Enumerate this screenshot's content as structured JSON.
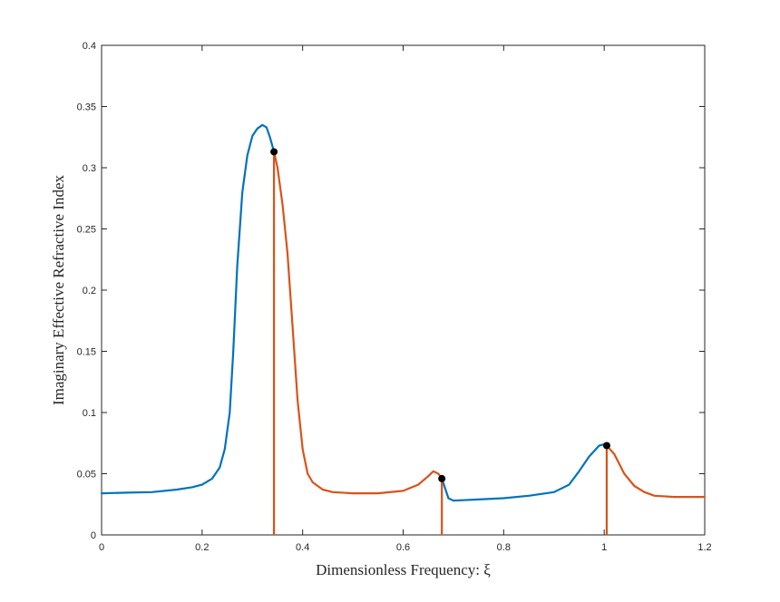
{
  "chart_data": {
    "type": "line",
    "xlabel": "Dimensionless Frequency: ξ",
    "ylabel": "Imaginary Effective Refractive Index",
    "xlim": [
      0,
      1.2
    ],
    "ylim": [
      0,
      0.4
    ],
    "x_ticks": [
      0,
      0.2,
      0.4,
      0.6,
      0.8,
      1,
      1.2
    ],
    "x_tick_labels": [
      "0",
      "0.2",
      "0.4",
      "0.6",
      "0.8",
      "1",
      "1.2"
    ],
    "y_ticks": [
      0,
      0.05,
      0.1,
      0.15,
      0.2,
      0.25,
      0.3,
      0.35,
      0.4
    ],
    "y_tick_labels": [
      "0",
      "0.05",
      "0.1",
      "0.15",
      "0.2",
      "0.25",
      "0.3",
      "0.35",
      "0.4"
    ],
    "grid": false,
    "colors": {
      "blue": "#0072BD",
      "orange": "#D95319",
      "marker": "#000000"
    },
    "series": [
      {
        "color": "blue",
        "segments": [
          {
            "x": [
              0,
              0.05,
              0.1,
              0.15,
              0.18,
              0.2,
              0.22,
              0.235,
              0.245,
              0.255,
              0.262,
              0.27,
              0.28,
              0.29,
              0.3,
              0.31,
              0.32,
              0.328,
              0.335,
              0.343
            ],
            "y": [
              0.034,
              0.0345,
              0.035,
              0.037,
              0.039,
              0.041,
              0.046,
              0.055,
              0.07,
              0.1,
              0.15,
              0.22,
              0.28,
              0.31,
              0.326,
              0.332,
              0.335,
              0.333,
              0.325,
              0.313
            ]
          },
          {
            "x": [
              0.677,
              0.69,
              0.7,
              0.75,
              0.8,
              0.85,
              0.9,
              0.93,
              0.95,
              0.97,
              0.99,
              1.0,
              1.005
            ],
            "y": [
              0.046,
              0.03,
              0.028,
              0.029,
              0.03,
              0.032,
              0.035,
              0.041,
              0.052,
              0.064,
              0.073,
              0.074,
              0.073
            ]
          }
        ]
      },
      {
        "color": "orange",
        "segments": [
          {
            "x": [
              0.343,
              0.35,
              0.36,
              0.37,
              0.38,
              0.39,
              0.4,
              0.41,
              0.42,
              0.44,
              0.46,
              0.5,
              0.55,
              0.6,
              0.63,
              0.65,
              0.66,
              0.67,
              0.677
            ],
            "y": [
              0.313,
              0.3,
              0.27,
              0.23,
              0.17,
              0.11,
              0.07,
              0.05,
              0.043,
              0.037,
              0.035,
              0.034,
              0.034,
              0.036,
              0.041,
              0.048,
              0.052,
              0.05,
              0.046
            ]
          },
          {
            "x": [
              1.005,
              1.02,
              1.04,
              1.06,
              1.08,
              1.1,
              1.14,
              1.2
            ],
            "y": [
              0.073,
              0.066,
              0.05,
              0.04,
              0.035,
              0.032,
              0.031,
              0.031
            ]
          }
        ]
      }
    ],
    "stems": [
      {
        "x": 0.343,
        "y": 0.313
      },
      {
        "x": 0.677,
        "y": 0.046
      },
      {
        "x": 1.005,
        "y": 0.073
      }
    ]
  }
}
